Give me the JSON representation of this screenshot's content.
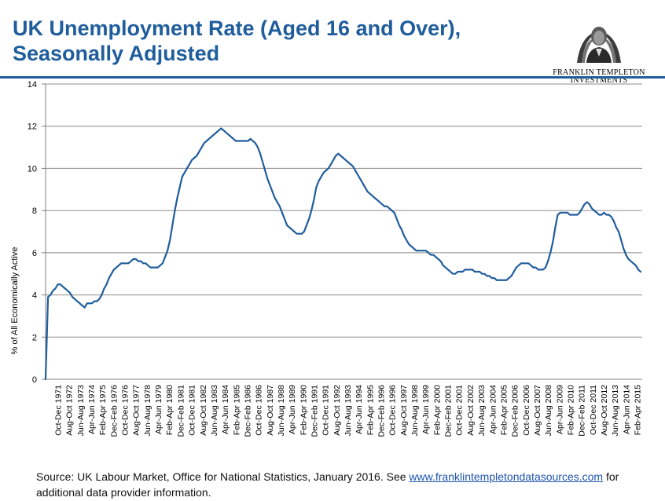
{
  "header": {
    "title_line1": "UK Unemployment Rate (Aged 16 and Over),",
    "title_line2": "Seasonally Adjusted",
    "logo_line1": "FRANKLIN TEMPLETON",
    "logo_line2": "INVESTMENTS"
  },
  "colors": {
    "title": "#1f5d9c",
    "line": "#1f5d9c",
    "grid": "#7f7f7f"
  },
  "footer": {
    "source_prefix": "Source: UK Labour Market, Office for National Statistics,  January 2016. See ",
    "source_link": "www.franklintempletondatasources.com",
    "source_suffix": " for additional data provider information."
  },
  "chart_data": {
    "type": "line",
    "title": "UK Unemployment Rate (Aged 16 and Over), Seasonally Adjusted",
    "ylabel": "% of All Economically Active",
    "xlabel": "",
    "ylim": [
      0,
      14
    ],
    "yticks": [
      0,
      2,
      4,
      6,
      8,
      10,
      12,
      14
    ],
    "grid": "horizontal",
    "legend": "none",
    "x_tick_labels": [
      "Oct-Dec 1971",
      "Aug-Oct 1972",
      "Jun-Aug 1973",
      "Apr-Jun 1974",
      "Feb-Apr 1975",
      "Dec-Feb 1976",
      "Oct-Dec 1976",
      "Aug-Oct 1977",
      "Jun-Aug 1978",
      "Apr-Jun 1979",
      "Feb-Apr 1980",
      "Dec-Feb 1981",
      "Oct-Dec 1981",
      "Aug-Oct 1982",
      "Jun-Aug 1983",
      "Apr-Jun 1984",
      "Feb-Apr 1985",
      "Dec-Feb 1986",
      "Oct-Dec 1986",
      "Aug-Oct 1987",
      "Jun-Aug 1988",
      "Apr-Jun 1989",
      "Feb-Apr 1990",
      "Dec-Feb 1991",
      "Oct-Dec 1991",
      "Aug-Oct 1992",
      "Jun-Aug 1993",
      "Apr-Jun 1994",
      "Feb-Apr 1995",
      "Dec-Feb 1996",
      "Oct-Dec 1996",
      "Aug-Oct 1997",
      "Jun-Aug 1998",
      "Apr-Jun 1999",
      "Feb-Apr 2000",
      "Dec-Feb 2001",
      "Oct-Dec 2001",
      "Aug-Oct 2002",
      "Jun-Aug 2003",
      "Apr-Jun 2004",
      "Feb-Apr 2005",
      "Dec-Feb 2006",
      "Oct-Dec 2006",
      "Aug-Oct 2007",
      "Jun-Aug 2008",
      "Apr-Jun 2009",
      "Feb-Apr 2010",
      "Dec-Feb 2011",
      "Oct-Dec 2011",
      "Aug-Oct 2012",
      "Jun-Aug 2013",
      "Apr-Jun 2014",
      "Feb-Apr 2015"
    ],
    "series": [
      {
        "values": [
          0.0,
          3.9,
          4.0,
          4.2,
          4.3,
          4.5,
          4.5,
          4.4,
          4.3,
          4.2,
          4.1,
          3.9,
          3.8,
          3.7,
          3.6,
          3.5,
          3.4,
          3.6,
          3.6,
          3.6,
          3.7,
          3.7,
          3.8,
          4.0,
          4.3,
          4.5,
          4.8,
          5.0,
          5.2,
          5.3,
          5.4,
          5.5,
          5.5,
          5.5,
          5.5,
          5.6,
          5.7,
          5.7,
          5.6,
          5.6,
          5.5,
          5.5,
          5.4,
          5.3,
          5.3,
          5.3,
          5.3,
          5.4,
          5.5,
          5.8,
          6.1,
          6.6,
          7.3,
          8.0,
          8.6,
          9.1,
          9.6,
          9.8,
          10.0,
          10.2,
          10.4,
          10.5,
          10.6,
          10.8,
          11.0,
          11.2,
          11.3,
          11.4,
          11.5,
          11.6,
          11.7,
          11.8,
          11.9,
          11.8,
          11.7,
          11.6,
          11.5,
          11.4,
          11.3,
          11.3,
          11.3,
          11.3,
          11.3,
          11.3,
          11.4,
          11.3,
          11.2,
          11.0,
          10.7,
          10.3,
          9.9,
          9.5,
          9.2,
          8.9,
          8.6,
          8.4,
          8.2,
          7.9,
          7.6,
          7.3,
          7.2,
          7.1,
          7.0,
          6.9,
          6.9,
          6.9,
          7.0,
          7.3,
          7.6,
          8.0,
          8.5,
          9.1,
          9.4,
          9.6,
          9.8,
          9.9,
          10.0,
          10.2,
          10.4,
          10.6,
          10.7,
          10.6,
          10.5,
          10.4,
          10.3,
          10.2,
          10.1,
          9.9,
          9.7,
          9.5,
          9.3,
          9.1,
          8.9,
          8.8,
          8.7,
          8.6,
          8.5,
          8.4,
          8.3,
          8.2,
          8.2,
          8.1,
          8.0,
          7.9,
          7.6,
          7.3,
          7.1,
          6.8,
          6.6,
          6.4,
          6.3,
          6.2,
          6.1,
          6.1,
          6.1,
          6.1,
          6.1,
          6.0,
          5.9,
          5.9,
          5.8,
          5.7,
          5.6,
          5.4,
          5.3,
          5.2,
          5.1,
          5.0,
          5.0,
          5.1,
          5.1,
          5.1,
          5.2,
          5.2,
          5.2,
          5.2,
          5.1,
          5.1,
          5.1,
          5.0,
          5.0,
          4.9,
          4.9,
          4.8,
          4.8,
          4.7,
          4.7,
          4.7,
          4.7,
          4.7,
          4.8,
          4.9,
          5.1,
          5.3,
          5.4,
          5.5,
          5.5,
          5.5,
          5.5,
          5.4,
          5.3,
          5.3,
          5.2,
          5.2,
          5.2,
          5.3,
          5.6,
          6.0,
          6.5,
          7.2,
          7.8,
          7.9,
          7.9,
          7.9,
          7.9,
          7.8,
          7.8,
          7.8,
          7.8,
          7.9,
          8.1,
          8.3,
          8.4,
          8.3,
          8.1,
          8.0,
          7.9,
          7.8,
          7.8,
          7.9,
          7.8,
          7.8,
          7.7,
          7.5,
          7.2,
          7.0,
          6.6,
          6.2,
          5.9,
          5.7,
          5.6,
          5.5,
          5.4,
          5.2,
          5.1
        ]
      }
    ]
  }
}
